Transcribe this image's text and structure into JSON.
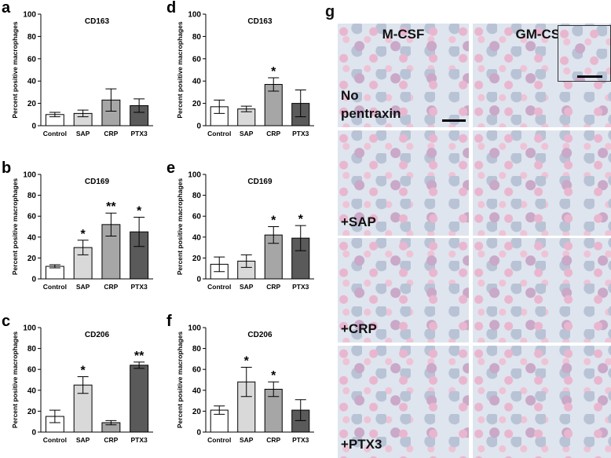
{
  "chart_data": [
    {
      "type": "bar",
      "panel": "a",
      "title": "CD163",
      "y_label": "Percent positive macrophages",
      "categories": [
        "Control",
        "SAP",
        "CRP",
        "PTX3"
      ],
      "values": [
        10,
        11,
        23,
        18
      ],
      "errors": [
        2,
        3,
        10,
        6
      ],
      "annotations": [
        null,
        null,
        null,
        null
      ],
      "colors": [
        "#ffffff",
        "#d9d9d9",
        "#a6a6a6",
        "#5a5a5a"
      ],
      "ylim": [
        0,
        100
      ],
      "yticks": [
        0,
        20,
        40,
        60,
        80,
        100
      ]
    },
    {
      "type": "bar",
      "panel": "b",
      "title": "CD169",
      "y_label": "Percent positive macrophages",
      "categories": [
        "Control",
        "SAP",
        "CRP",
        "PTX3"
      ],
      "values": [
        12,
        30,
        52,
        45
      ],
      "errors": [
        1.5,
        7,
        11,
        14
      ],
      "annotations": [
        null,
        "*",
        "**",
        "*"
      ],
      "colors": [
        "#ffffff",
        "#d9d9d9",
        "#a6a6a6",
        "#5a5a5a"
      ],
      "ylim": [
        0,
        100
      ],
      "yticks": [
        0,
        20,
        40,
        60,
        80,
        100
      ]
    },
    {
      "type": "bar",
      "panel": "c",
      "title": "CD206",
      "y_label": "Percent positive macrophages",
      "categories": [
        "Control",
        "SAP",
        "CRP",
        "PTX3"
      ],
      "values": [
        15,
        45,
        9,
        64
      ],
      "errors": [
        6,
        8,
        2,
        3
      ],
      "annotations": [
        null,
        "*",
        null,
        "**"
      ],
      "colors": [
        "#ffffff",
        "#d9d9d9",
        "#a6a6a6",
        "#5a5a5a"
      ],
      "ylim": [
        0,
        100
      ],
      "yticks": [
        0,
        20,
        40,
        60,
        80,
        100
      ]
    },
    {
      "type": "bar",
      "panel": "d",
      "title": "CD163",
      "y_label": "Percent positive macrophages",
      "categories": [
        "Control",
        "SAP",
        "CRP",
        "PTX3"
      ],
      "values": [
        17,
        15,
        37,
        20
      ],
      "errors": [
        6,
        2.5,
        6,
        12
      ],
      "annotations": [
        null,
        null,
        "*",
        null
      ],
      "colors": [
        "#ffffff",
        "#d9d9d9",
        "#a6a6a6",
        "#5a5a5a"
      ],
      "ylim": [
        0,
        100
      ],
      "yticks": [
        0,
        20,
        40,
        60,
        80,
        100
      ]
    },
    {
      "type": "bar",
      "panel": "e",
      "title": "CD169",
      "y_label": "Percent positive macrophages",
      "categories": [
        "Control",
        "SAP",
        "CRP",
        "PTX3"
      ],
      "values": [
        14,
        17,
        42,
        39
      ],
      "errors": [
        7,
        6,
        8,
        12
      ],
      "annotations": [
        null,
        null,
        "*",
        "*"
      ],
      "colors": [
        "#ffffff",
        "#d9d9d9",
        "#a6a6a6",
        "#5a5a5a"
      ],
      "ylim": [
        0,
        100
      ],
      "yticks": [
        0,
        20,
        40,
        60,
        80,
        100
      ]
    },
    {
      "type": "bar",
      "panel": "f",
      "title": "CD206",
      "y_label": "Percent positive macrophages",
      "categories": [
        "Control",
        "SAP",
        "CRP",
        "PTX3"
      ],
      "values": [
        21,
        48,
        41,
        21
      ],
      "errors": [
        4,
        14,
        7,
        10
      ],
      "annotations": [
        null,
        "*",
        "*",
        null
      ],
      "colors": [
        "#ffffff",
        "#d9d9d9",
        "#a6a6a6",
        "#5a5a5a"
      ],
      "ylim": [
        0,
        100
      ],
      "yticks": [
        0,
        20,
        40,
        60,
        80,
        100
      ]
    }
  ],
  "micrograph": {
    "panel": "g",
    "columns": [
      "M-CSF",
      "GM-CSF"
    ],
    "rows": [
      "No pentraxin",
      "+SAP",
      "+CRP",
      "+PTX3"
    ]
  }
}
